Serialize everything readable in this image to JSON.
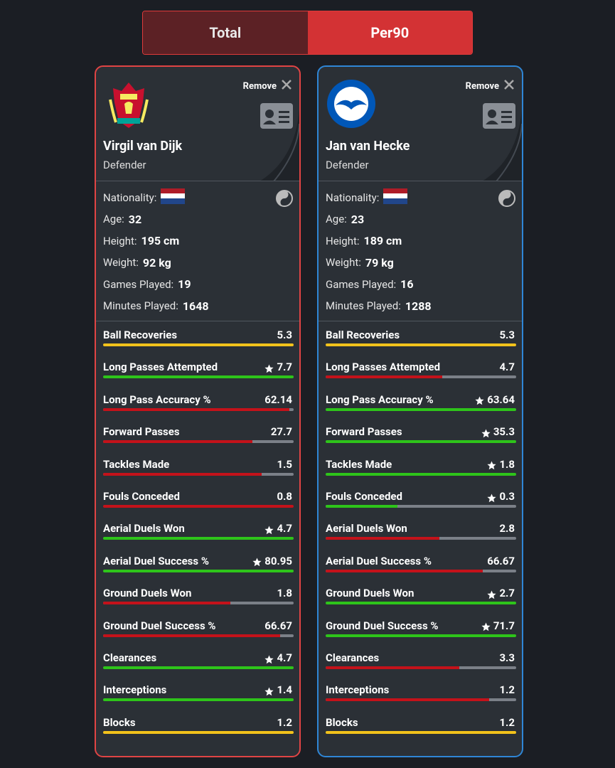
{
  "toggle": {
    "options": [
      "Total",
      "Per90"
    ],
    "active": 1
  },
  "remove_label": "Remove",
  "info_labels": [
    "Nationality:",
    "Age:",
    "Height:",
    "Weight:",
    "Games Played:",
    "Minutes Played:"
  ],
  "players": [
    {
      "name": "Virgil van Dijk",
      "position": "Defender",
      "color": "#e04444",
      "age": 32,
      "height": "195 cm",
      "weight": "92 kg",
      "games_played": 19,
      "minutes_played": 1648
    },
    {
      "name": "Jan van Hecke",
      "position": "Defender",
      "color": "#2f86d6",
      "age": 23,
      "height": "189 cm",
      "weight": "79 kg",
      "games_played": 16,
      "minutes_played": 1288
    }
  ],
  "stats": [
    {
      "name": "Ball Recoveries",
      "values": [
        5.3,
        5.3
      ],
      "best": null
    },
    {
      "name": "Long Passes Attempted",
      "values": [
        7.7,
        4.7
      ],
      "best": 0
    },
    {
      "name": "Long Pass Accuracy %",
      "values": [
        62.14,
        63.64
      ],
      "best": 1
    },
    {
      "name": "Forward Passes",
      "values": [
        27.7,
        35.3
      ],
      "best": 1
    },
    {
      "name": "Tackles Made",
      "values": [
        1.5,
        1.8
      ],
      "best": 1
    },
    {
      "name": "Fouls Conceded",
      "values": [
        0.8,
        0.3
      ],
      "best": 1
    },
    {
      "name": "Aerial Duels Won",
      "values": [
        4.7,
        2.8
      ],
      "best": 0
    },
    {
      "name": "Aerial Duel Success %",
      "values": [
        80.95,
        66.67
      ],
      "best": 0
    },
    {
      "name": "Ground Duels Won",
      "values": [
        1.8,
        2.7
      ],
      "best": 1
    },
    {
      "name": "Ground Duel Success %",
      "values": [
        66.67,
        71.7
      ],
      "best": 1
    },
    {
      "name": "Clearances",
      "values": [
        4.7,
        3.3
      ],
      "best": 0
    },
    {
      "name": "Interceptions",
      "values": [
        1.4,
        1.2
      ],
      "best": 0
    },
    {
      "name": "Blocks",
      "values": [
        1.2,
        1.2
      ],
      "best": null
    }
  ]
}
